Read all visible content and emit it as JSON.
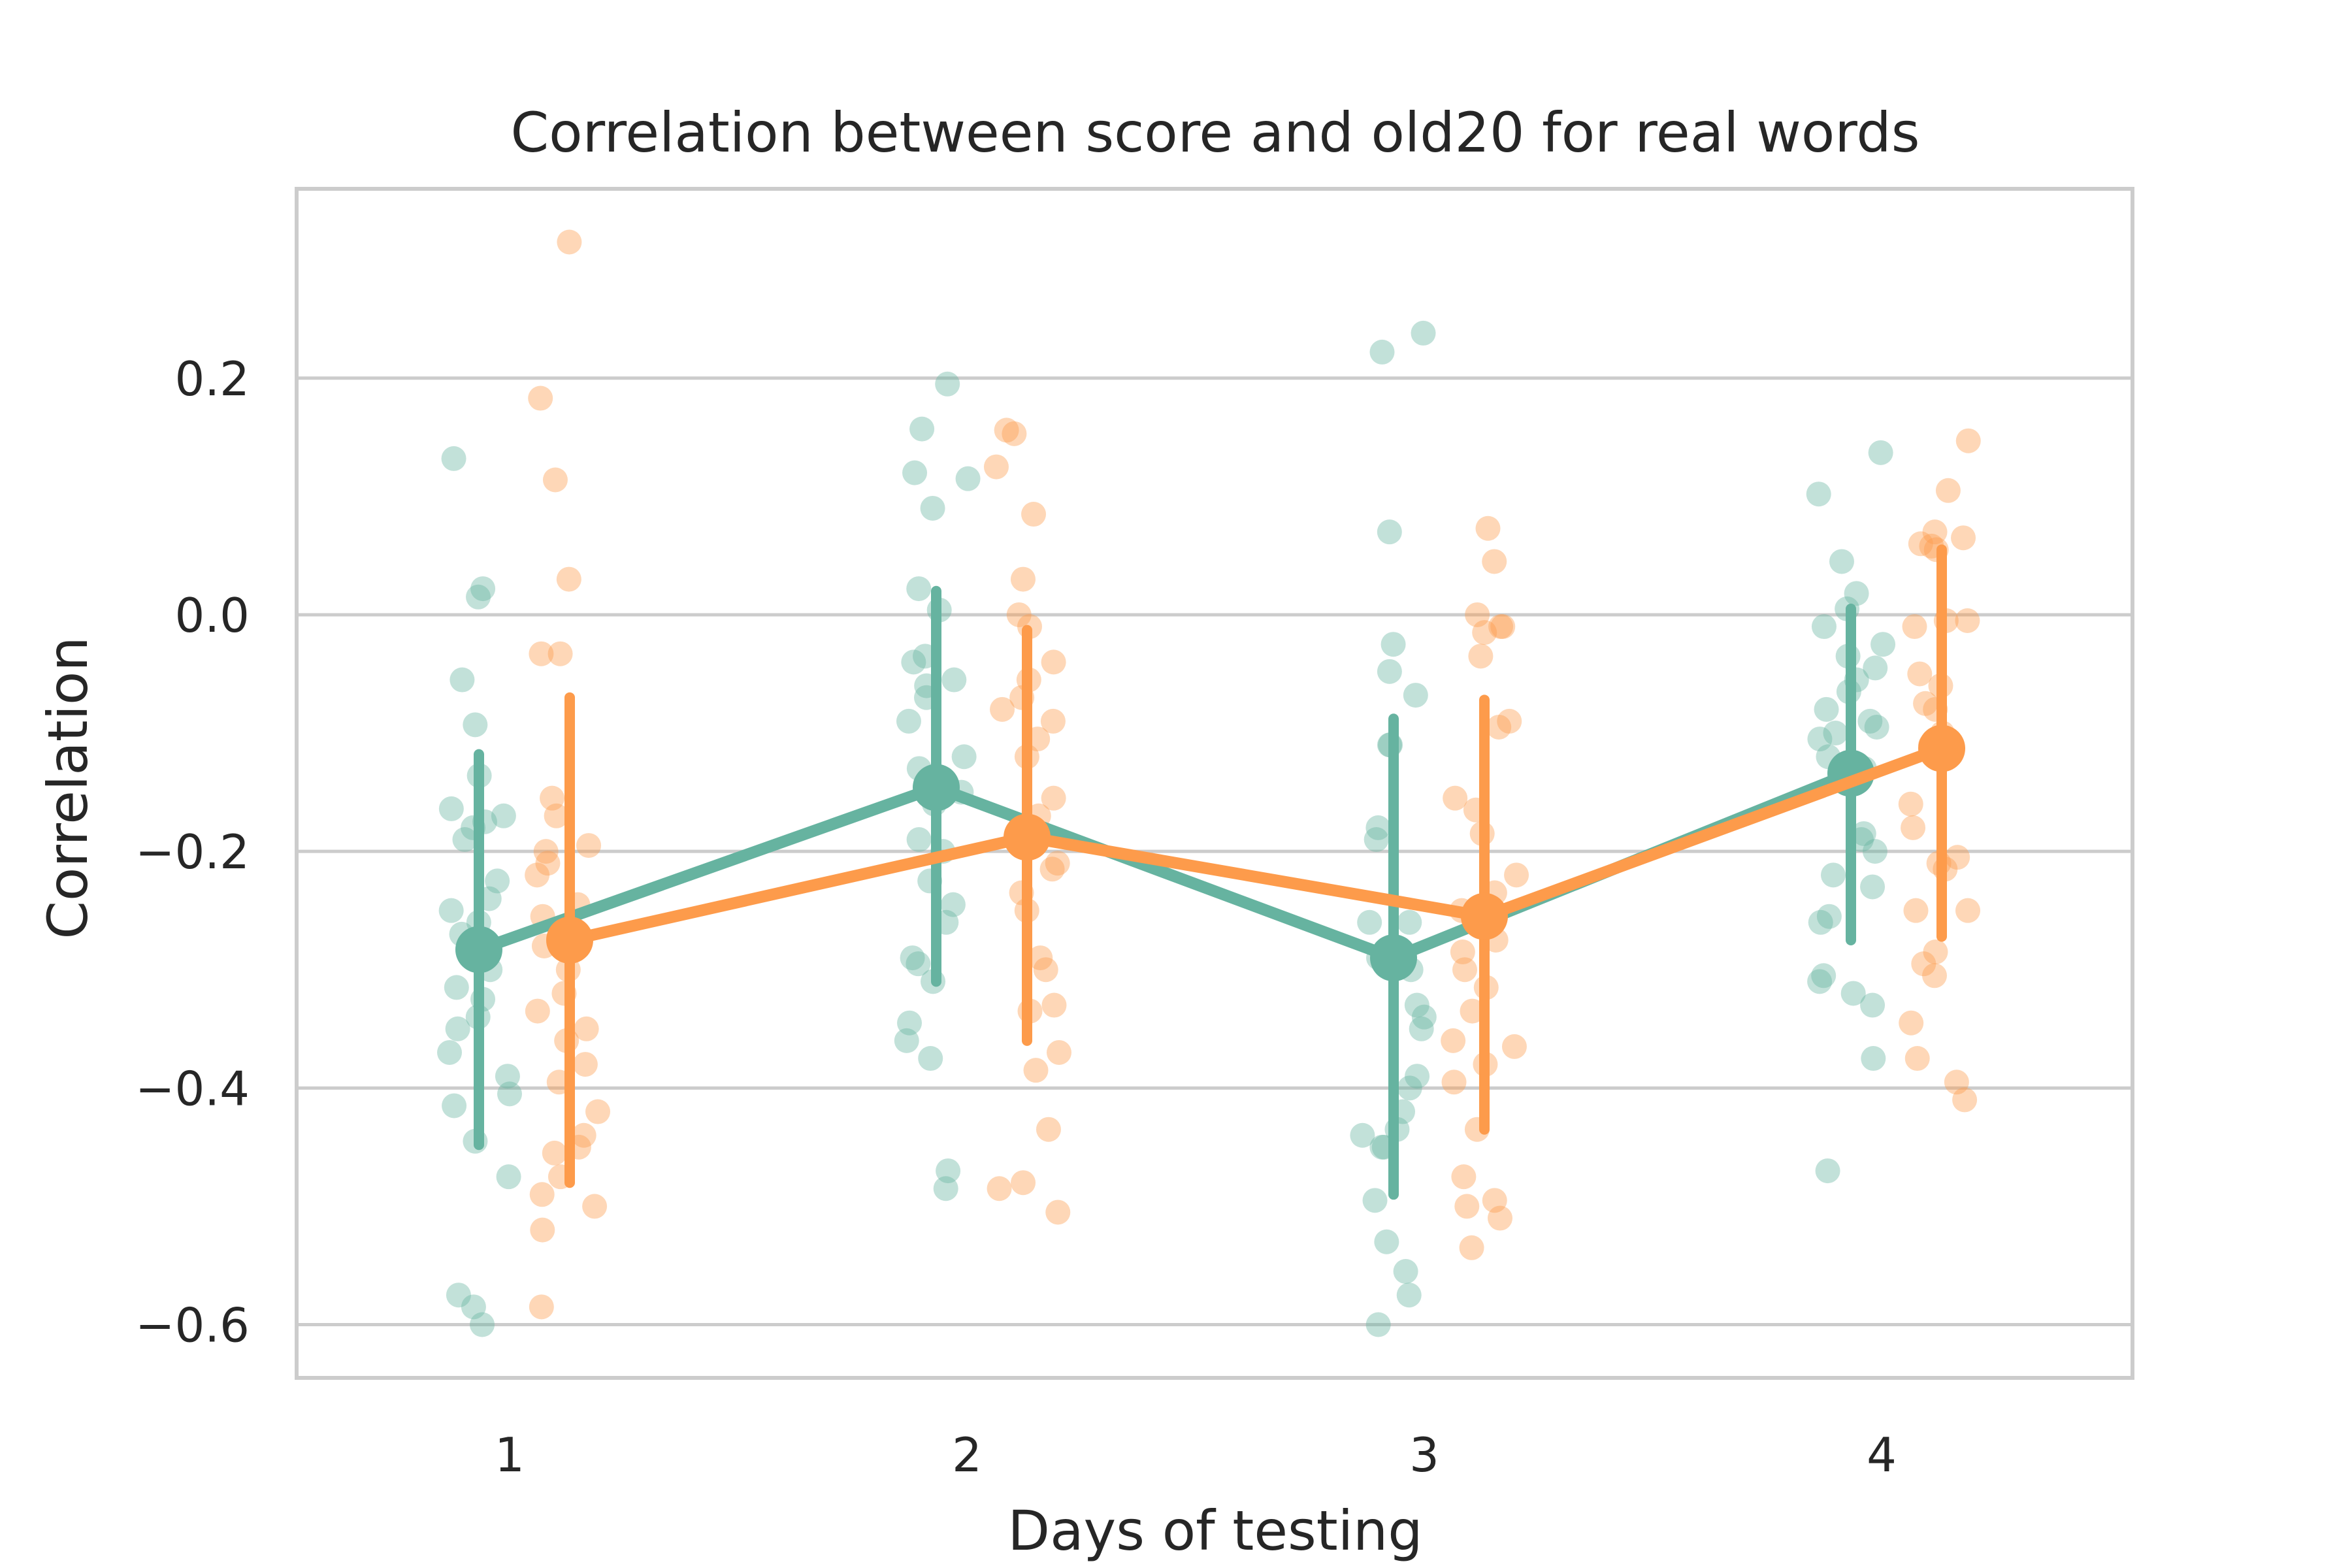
{
  "chart_data": {
    "type": "scatter",
    "title": "Correlation between score and old20 for real words",
    "xlabel": "Days of testing",
    "ylabel": "Correlation",
    "categories": [
      "1",
      "2",
      "3",
      "4"
    ],
    "ylim": [
      -0.645,
      0.36
    ],
    "yticks": [
      0.2,
      0.0,
      -0.2,
      -0.4,
      -0.6
    ],
    "ytick_labels": [
      "0.2",
      "0.0",
      "−0.2",
      "−0.4",
      "−0.6"
    ],
    "grid": "horizontal",
    "legend": "none",
    "series": [
      {
        "color": "#66b3a0",
        "means": [
          -0.283,
          -0.146,
          -0.29,
          -0.134
        ],
        "ci_low": [
          -0.448,
          -0.31,
          -0.49,
          -0.275
        ],
        "ci_high": [
          -0.118,
          0.02,
          -0.088,
          0.005
        ],
        "points": [
          [
            0.015,
            0.022,
            0.132,
            -0.055,
            -0.093,
            -0.136,
            -0.164,
            -0.17,
            -0.175,
            -0.18,
            -0.19,
            -0.225,
            -0.24,
            -0.25,
            -0.26,
            -0.27,
            -0.3,
            -0.315,
            -0.325,
            -0.34,
            -0.35,
            -0.37,
            -0.39,
            -0.405,
            -0.415,
            -0.445,
            -0.475,
            -0.575,
            -0.585,
            -0.6
          ],
          [
            0.195,
            0.157,
            0.12,
            0.115,
            0.09,
            0.022,
            0.004,
            -0.035,
            -0.04,
            -0.055,
            -0.06,
            -0.07,
            -0.09,
            -0.12,
            -0.13,
            -0.15,
            -0.16,
            -0.19,
            -0.2,
            -0.225,
            -0.245,
            -0.26,
            -0.29,
            -0.295,
            -0.31,
            -0.345,
            -0.36,
            -0.375,
            -0.47,
            -0.485
          ],
          [
            0.238,
            0.222,
            0.07,
            -0.025,
            -0.048,
            -0.068,
            -0.11,
            -0.11,
            -0.18,
            -0.19,
            -0.26,
            -0.26,
            -0.29,
            -0.3,
            -0.33,
            -0.34,
            -0.35,
            -0.39,
            -0.4,
            -0.42,
            -0.435,
            -0.44,
            -0.45,
            -0.45,
            -0.495,
            -0.53,
            -0.555,
            -0.575,
            -0.6
          ],
          [
            0.137,
            0.102,
            0.045,
            0.018,
            0.005,
            -0.01,
            -0.025,
            -0.035,
            -0.045,
            -0.055,
            -0.065,
            -0.08,
            -0.09,
            -0.095,
            -0.1,
            -0.105,
            -0.12,
            -0.13,
            -0.185,
            -0.19,
            -0.2,
            -0.22,
            -0.23,
            -0.255,
            -0.26,
            -0.305,
            -0.31,
            -0.32,
            -0.33,
            -0.375,
            -0.47
          ]
        ]
      },
      {
        "color": "#fd9b4b",
        "means": [
          -0.275,
          -0.188,
          -0.255,
          -0.113
        ],
        "ci_low": [
          -0.48,
          -0.36,
          -0.435,
          -0.272
        ],
        "ci_high": [
          -0.07,
          -0.013,
          -0.072,
          0.055
        ],
        "points": [
          [
            0.315,
            0.183,
            0.114,
            0.03,
            -0.033,
            -0.033,
            -0.155,
            -0.17,
            -0.195,
            -0.2,
            -0.21,
            -0.22,
            -0.245,
            -0.255,
            -0.265,
            -0.28,
            -0.3,
            -0.32,
            -0.335,
            -0.35,
            -0.36,
            -0.38,
            -0.395,
            -0.42,
            -0.44,
            -0.45,
            -0.455,
            -0.475,
            -0.49,
            -0.5,
            -0.52,
            -0.585
          ],
          [
            0.156,
            0.153,
            0.125,
            0.085,
            0.03,
            0.0,
            -0.01,
            -0.04,
            -0.055,
            -0.07,
            -0.08,
            -0.09,
            -0.105,
            -0.12,
            -0.155,
            -0.17,
            -0.185,
            -0.21,
            -0.215,
            -0.235,
            -0.25,
            -0.29,
            -0.3,
            -0.33,
            -0.335,
            -0.37,
            -0.385,
            -0.435,
            -0.48,
            -0.485,
            -0.505
          ],
          [
            0.073,
            0.045,
            0.0,
            -0.01,
            -0.01,
            -0.015,
            -0.035,
            -0.09,
            -0.095,
            -0.155,
            -0.165,
            -0.185,
            -0.22,
            -0.235,
            -0.25,
            -0.275,
            -0.285,
            -0.3,
            -0.315,
            -0.335,
            -0.36,
            -0.365,
            -0.38,
            -0.395,
            -0.435,
            -0.475,
            -0.495,
            -0.5,
            -0.51,
            -0.535
          ],
          [
            0.147,
            0.105,
            0.07,
            0.065,
            0.06,
            0.058,
            0.055,
            -0.005,
            -0.005,
            -0.01,
            -0.05,
            -0.06,
            -0.075,
            -0.08,
            -0.1,
            -0.11,
            -0.16,
            -0.18,
            -0.205,
            -0.21,
            -0.215,
            -0.25,
            -0.25,
            -0.285,
            -0.295,
            -0.305,
            -0.345,
            -0.375,
            -0.395,
            -0.41
          ]
        ]
      }
    ]
  }
}
